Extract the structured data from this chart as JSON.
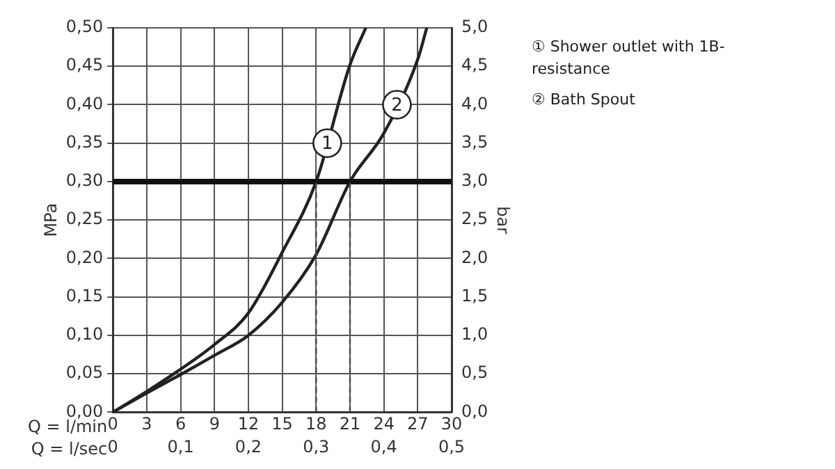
{
  "chart_data": {
    "type": "line",
    "xlabel": "Q = l/min",
    "x2label": "Q = l/sec",
    "ylabel": "MPa",
    "y2label": "bar",
    "xlim": [
      0,
      30
    ],
    "xticks": [
      0,
      3,
      6,
      9,
      12,
      15,
      18,
      21,
      24,
      27,
      30
    ],
    "x2lim": [
      0,
      0.5
    ],
    "x2ticks": [
      0,
      {
        "value": 0.1,
        "label": "0,1"
      },
      {
        "value": 0.2,
        "label": "0,2"
      },
      {
        "value": 0.3,
        "label": "0,3"
      },
      {
        "value": 0.4,
        "label": "0,4"
      },
      {
        "value": 0.5,
        "label": "0,5"
      }
    ],
    "ylim": [
      0,
      0.5
    ],
    "yticks": [
      {
        "value": 0,
        "label": "0,00"
      },
      {
        "value": 0.05,
        "label": "0,05"
      },
      {
        "value": 0.1,
        "label": "0,10"
      },
      {
        "value": 0.15,
        "label": "0,15"
      },
      {
        "value": 0.2,
        "label": "0,20"
      },
      {
        "value": 0.25,
        "label": "0,25"
      },
      {
        "value": 0.3,
        "label": "0,30"
      },
      {
        "value": 0.35,
        "label": "0,35"
      },
      {
        "value": 0.4,
        "label": "0,40"
      },
      {
        "value": 0.45,
        "label": "0,45"
      },
      {
        "value": 0.5,
        "label": "0,50"
      }
    ],
    "y2lim": [
      0,
      5
    ],
    "y2ticks": [
      {
        "value": 0,
        "label": "0,0"
      },
      {
        "value": 0.5,
        "label": "0,5"
      },
      {
        "value": 1,
        "label": "1,0"
      },
      {
        "value": 1.5,
        "label": "1,5"
      },
      {
        "value": 2,
        "label": "2,0"
      },
      {
        "value": 2.5,
        "label": "2,5"
      },
      {
        "value": 3,
        "label": "3,0"
      },
      {
        "value": 3.5,
        "label": "3,5"
      },
      {
        "value": 4,
        "label": "4,0"
      },
      {
        "value": 4.5,
        "label": "4,5"
      },
      {
        "value": 5,
        "label": "5,0"
      }
    ],
    "series": [
      {
        "name": "1",
        "color": "#222222",
        "x": [
          0,
          3,
          6,
          9,
          12,
          15,
          18,
          21,
          22.4
        ],
        "values": [
          0,
          0.027,
          0.056,
          0.088,
          0.129,
          0.208,
          0.3,
          0.452,
          0.5
        ]
      },
      {
        "name": "2",
        "color": "#222222",
        "x": [
          0,
          3,
          6,
          9,
          12,
          15,
          18,
          21,
          24,
          27,
          27.8
        ],
        "values": [
          0,
          0.025,
          0.049,
          0.074,
          0.1,
          0.143,
          0.205,
          0.3,
          0.363,
          0.459,
          0.5
        ]
      }
    ],
    "ref_lines": [
      {
        "axis": "y",
        "value": 0.3,
        "color": "#111111",
        "line_style": "solid"
      },
      {
        "axis": "x",
        "value": 18,
        "color": "#444444",
        "line_style": "dashed"
      },
      {
        "axis": "x",
        "value": 21,
        "color": "#444444",
        "line_style": "dashed"
      }
    ],
    "annotations": [
      "① Shower outlet with 1B-resistance",
      "② Bath Spout"
    ],
    "grid": true,
    "marker": "none",
    "line_style": "solid"
  }
}
